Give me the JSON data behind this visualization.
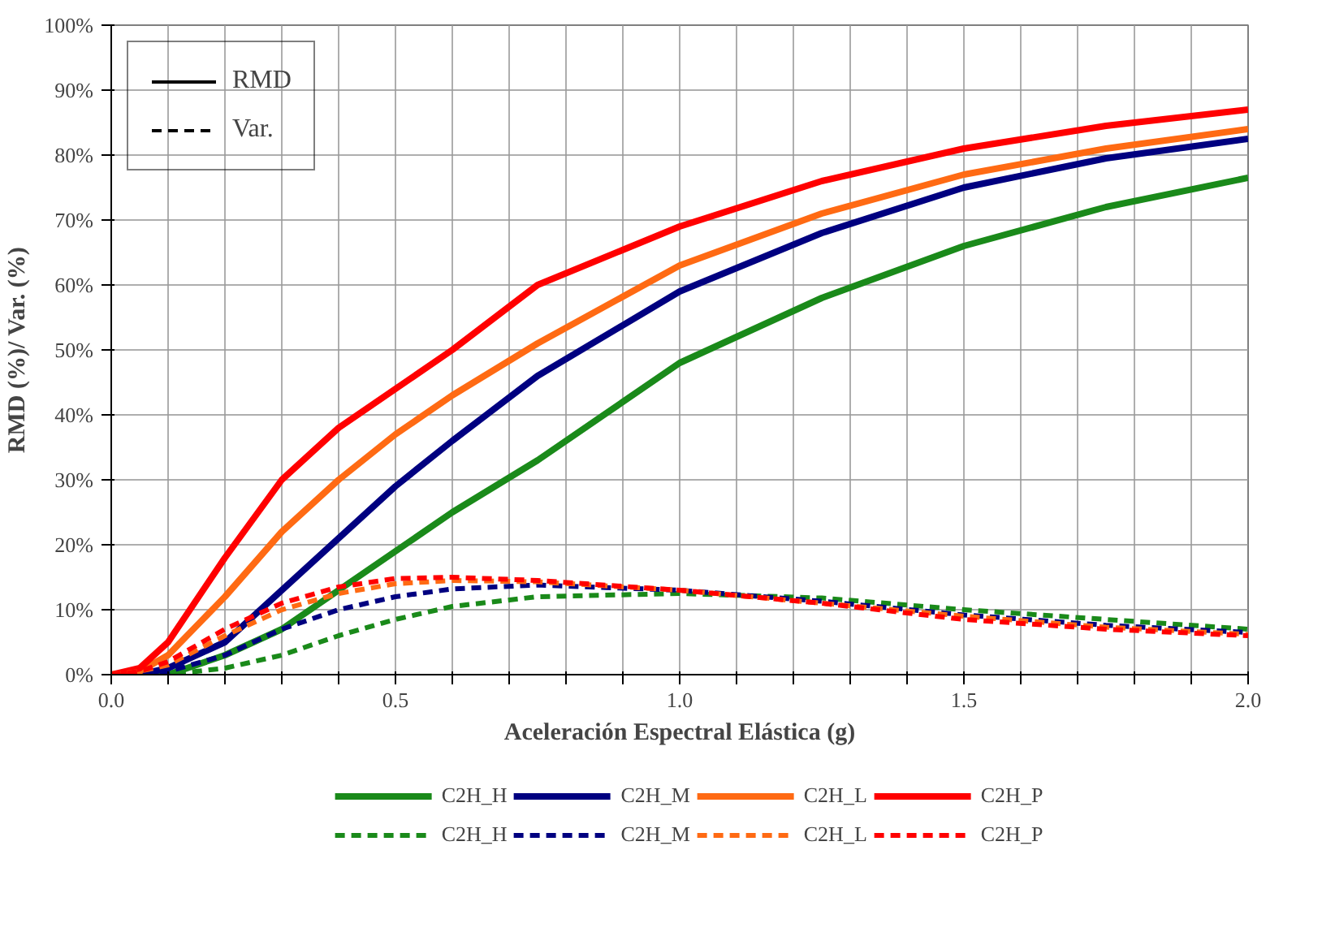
{
  "chart_data": {
    "type": "line",
    "xlabel": "Aceleración Espectral Elástica (g)",
    "ylabel": "RMD (%)/ Var. (%)",
    "x": [
      0,
      0.05,
      0.1,
      0.2,
      0.3,
      0.4,
      0.5,
      0.6,
      0.75,
      1.0,
      1.25,
      1.5,
      1.75,
      2.0
    ],
    "series": [
      {
        "name": "C2H_H",
        "color": "#1a8a1a",
        "line_style": "solid",
        "values": [
          0,
          0,
          0,
          3,
          7,
          13,
          19,
          25,
          33,
          48,
          58,
          66,
          72,
          76.5
        ]
      },
      {
        "name": "C2H_M",
        "color": "#000080",
        "line_style": "solid",
        "values": [
          0,
          0,
          1,
          5,
          13,
          21,
          29,
          36,
          46,
          59,
          68,
          75,
          79.5,
          82.5
        ]
      },
      {
        "name": "C2H_L",
        "color": "#ff6a13",
        "line_style": "solid",
        "values": [
          0,
          0.5,
          3,
          12,
          22,
          30,
          37,
          43,
          51,
          63,
          71,
          77,
          81,
          84
        ]
      },
      {
        "name": "C2H_P",
        "color": "#ff0000",
        "line_style": "solid",
        "values": [
          0,
          1,
          5,
          18,
          30,
          38,
          44,
          50,
          60,
          69,
          76,
          81,
          84.5,
          87
        ]
      },
      {
        "name": "C2H_H",
        "color": "#1a8a1a",
        "line_style": "dashed",
        "values": [
          0,
          0,
          0,
          1,
          3,
          6,
          8.5,
          10.5,
          12,
          12.5,
          11.8,
          10,
          8.5,
          7
        ]
      },
      {
        "name": "C2H_M",
        "color": "#000080",
        "line_style": "dashed",
        "values": [
          0,
          0,
          0.5,
          3,
          7,
          10,
          12,
          13.2,
          13.8,
          13,
          11.3,
          9.2,
          7.6,
          6.5
        ]
      },
      {
        "name": "C2H_L",
        "color": "#ff6a13",
        "line_style": "dashed",
        "values": [
          0,
          0.5,
          1.5,
          6,
          10,
          12.5,
          14,
          14.5,
          14.3,
          13,
          11,
          9,
          7.3,
          6.2
        ]
      },
      {
        "name": "C2H_P",
        "color": "#ff0000",
        "line_style": "dashed",
        "values": [
          0,
          0.5,
          2,
          7,
          11,
          13.5,
          14.8,
          15,
          14.5,
          13,
          11,
          8.5,
          7,
          6
        ]
      }
    ],
    "xlim": [
      0,
      2
    ],
    "xticks": [
      {
        "value": 0,
        "label": "0.0"
      },
      {
        "value": 0.1,
        "label": null
      },
      {
        "value": 0.2,
        "label": null
      },
      {
        "value": 0.3,
        "label": null
      },
      {
        "value": 0.4,
        "label": null
      },
      {
        "value": 0.5,
        "label": "0.5"
      },
      {
        "value": 0.6,
        "label": null
      },
      {
        "value": 0.7,
        "label": null
      },
      {
        "value": 0.8,
        "label": null
      },
      {
        "value": 0.9,
        "label": null
      },
      {
        "value": 1.0,
        "label": "1.0"
      },
      {
        "value": 1.1,
        "label": null
      },
      {
        "value": 1.2,
        "label": null
      },
      {
        "value": 1.3,
        "label": null
      },
      {
        "value": 1.4,
        "label": null
      },
      {
        "value": 1.5,
        "label": "1.5"
      },
      {
        "value": 1.6,
        "label": null
      },
      {
        "value": 1.7,
        "label": null
      },
      {
        "value": 1.8,
        "label": null
      },
      {
        "value": 1.9,
        "label": null
      },
      {
        "value": 2.0,
        "label": "2.0"
      }
    ],
    "ylim": [
      0,
      100
    ],
    "yticks": [
      {
        "value": 0,
        "label": "0%"
      },
      {
        "value": 10,
        "label": "10%"
      },
      {
        "value": 20,
        "label": "20%"
      },
      {
        "value": 30,
        "label": "30%"
      },
      {
        "value": 40,
        "label": "40%"
      },
      {
        "value": 50,
        "label": "50%"
      },
      {
        "value": 60,
        "label": "60%"
      },
      {
        "value": 70,
        "label": "70%"
      },
      {
        "value": 80,
        "label": "80%"
      },
      {
        "value": 90,
        "label": "90%"
      },
      {
        "value": 100,
        "label": "100%"
      }
    ],
    "annotations": [
      "RMD",
      "Var."
    ],
    "grid": true,
    "legend": "bottom",
    "marker": "none"
  }
}
